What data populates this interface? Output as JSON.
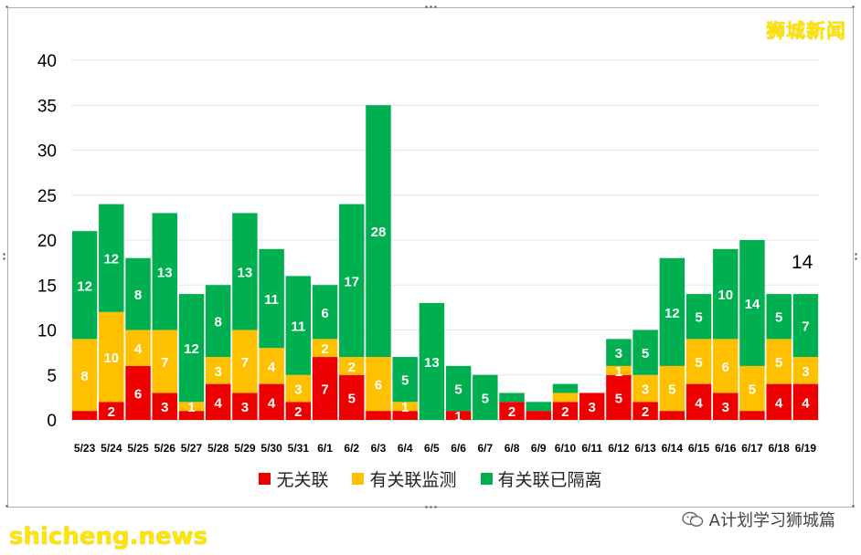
{
  "brand_label": "狮城新闻",
  "watermark_left": "shicheng.news",
  "watermark_right": "A计划学习狮城篇",
  "highlight_total": "14",
  "colors": {
    "s1": "#ee0000",
    "s2": "#ffc000",
    "s3": "#00b050"
  },
  "chart_data": {
    "type": "bar",
    "stacked": true,
    "title": "",
    "xlabel": "",
    "ylabel": "",
    "ylim": [
      0,
      40
    ],
    "yticks": [
      0,
      5,
      10,
      15,
      20,
      25,
      30,
      35,
      40
    ],
    "grid": true,
    "legend_position": "bottom",
    "categories": [
      "5/23",
      "5/24",
      "5/25",
      "5/26",
      "5/27",
      "5/28",
      "5/29",
      "5/30",
      "5/31",
      "6/1",
      "6/2",
      "6/3",
      "6/4",
      "6/5",
      "6/6",
      "6/7",
      "6/8",
      "6/9",
      "6/10",
      "6/11",
      "6/12",
      "6/13",
      "6/14",
      "6/15",
      "6/16",
      "6/17",
      "6/18",
      "6/19"
    ],
    "series": [
      {
        "name": "无关联",
        "color": "#ee0000",
        "values": [
          1,
          2,
          6,
          3,
          1,
          4,
          3,
          4,
          2,
          7,
          5,
          1,
          1,
          0,
          1,
          0,
          2,
          1,
          2,
          3,
          5,
          2,
          1,
          4,
          3,
          1,
          4,
          4
        ],
        "labels": [
          "",
          "2",
          "6",
          "3",
          "",
          "4",
          "3",
          "4",
          "2",
          "7",
          "5",
          "",
          "",
          "",
          "1",
          "",
          "2",
          "",
          "2",
          "3",
          "5",
          "2",
          "",
          "4",
          "3",
          "",
          "4",
          "4"
        ]
      },
      {
        "name": "有关联监测",
        "color": "#ffc000",
        "values": [
          8,
          10,
          4,
          7,
          1,
          3,
          7,
          4,
          3,
          2,
          2,
          6,
          1,
          0,
          0,
          0,
          0,
          0,
          1,
          0,
          1,
          3,
          5,
          5,
          6,
          5,
          5,
          3
        ],
        "labels": [
          "8",
          "10",
          "4",
          "7",
          "1",
          "3",
          "7",
          "4",
          "3",
          "2",
          "2",
          "6",
          "1",
          "",
          "",
          "",
          "",
          "",
          "",
          "",
          "1",
          "3",
          "5",
          "5",
          "6",
          "5",
          "5",
          "3"
        ]
      },
      {
        "name": "有关联已隔离",
        "color": "#00b050",
        "values": [
          12,
          12,
          8,
          13,
          12,
          8,
          13,
          11,
          11,
          6,
          17,
          28,
          5,
          13,
          5,
          5,
          1,
          1,
          1,
          0,
          3,
          5,
          12,
          5,
          10,
          14,
          5,
          7
        ],
        "labels": [
          "12",
          "12",
          "8",
          "13",
          "12",
          "8",
          "13",
          "11",
          "11",
          "6",
          "17",
          "28",
          "5",
          "13",
          "5",
          "5",
          "",
          "",
          "",
          "",
          "3",
          "5",
          "12",
          "5",
          "10",
          "14",
          "5",
          "7"
        ]
      }
    ]
  }
}
